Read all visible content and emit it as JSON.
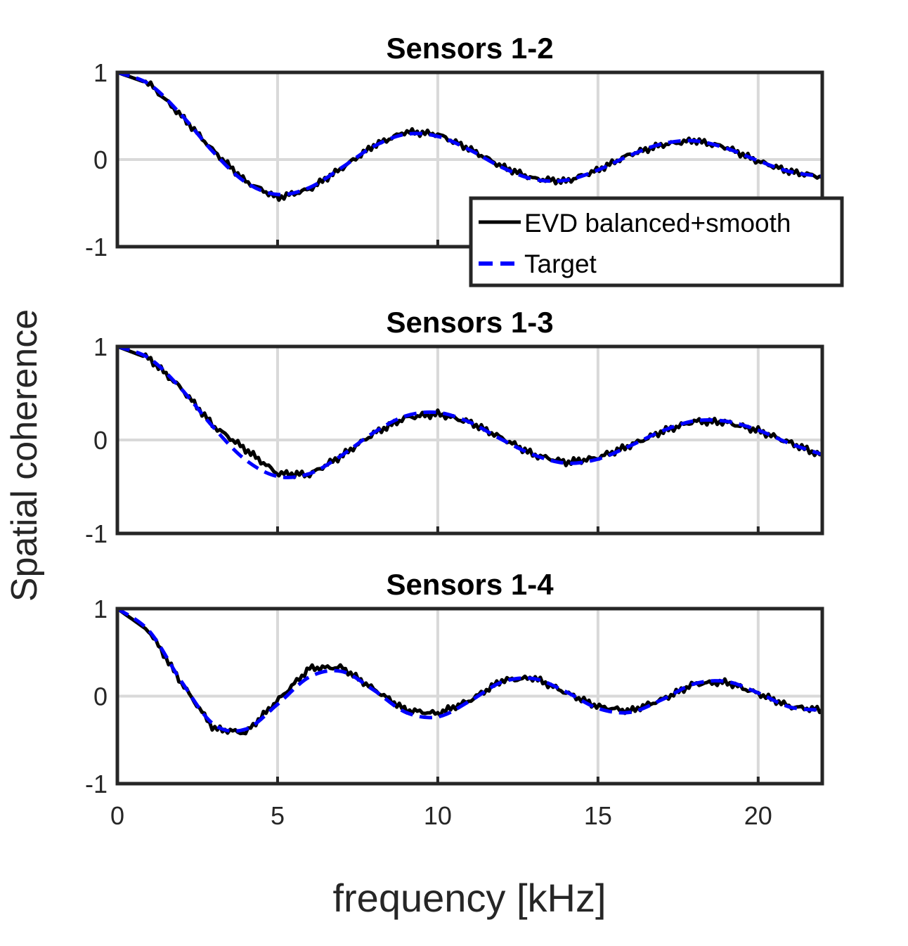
{
  "chart_data": {
    "type": "line",
    "ylabel": "Spatial coherence",
    "xlabel": "frequency [kHz]",
    "xlim": [
      0,
      22
    ],
    "ylim": [
      -1,
      1
    ],
    "xticks": [
      0,
      5,
      10,
      15,
      20
    ],
    "yticks": [
      -1,
      0,
      1
    ],
    "grid": true,
    "legend": {
      "placement": "bottom-right of first panel",
      "entries": [
        "EVD balanced+smooth",
        "Target"
      ]
    },
    "colors": {
      "measured": "#000000",
      "target": "#0000ff",
      "grid": "#d9d9d9",
      "axes": "#262626"
    },
    "x": [
      0,
      1,
      2,
      3,
      4,
      5,
      6,
      7,
      8,
      9,
      10,
      11,
      12,
      13,
      14,
      15,
      16,
      17,
      18,
      19,
      20,
      21,
      22
    ],
    "panels": [
      {
        "title": "Sensors 1-2",
        "series": [
          {
            "name": "EVD balanced+smooth",
            "values": [
              1,
              0.87,
              0.5,
              0.1,
              -0.25,
              -0.44,
              -0.34,
              -0.1,
              0.16,
              0.32,
              0.29,
              0.12,
              -0.08,
              -0.22,
              -0.25,
              -0.12,
              0.06,
              0.17,
              0.22,
              0.14,
              -0.02,
              -0.14,
              -0.2
            ]
          },
          {
            "name": "Target",
            "values": [
              1,
              0.864,
              0.512,
              0.083,
              -0.26,
              -0.401,
              -0.321,
              -0.093,
              0.151,
              0.29,
              0.266,
              0.11,
              -0.09,
              -0.227,
              -0.237,
              -0.12,
              0.048,
              0.18,
              0.215,
              0.13,
              -0.014,
              -0.14,
              -0.194
            ]
          }
        ]
      },
      {
        "title": "Sensors 1-3",
        "series": [
          {
            "name": "EVD balanced+smooth",
            "values": [
              1,
              0.87,
              0.55,
              0.15,
              -0.1,
              -0.36,
              -0.37,
              -0.17,
              0.07,
              0.24,
              0.28,
              0.19,
              0.02,
              -0.16,
              -0.24,
              -0.19,
              -0.06,
              0.09,
              0.2,
              0.19,
              0.1,
              -0.03,
              -0.17
            ]
          },
          {
            "name": "Target",
            "values": [
              1,
              0.873,
              0.544,
              0.134,
              -0.213,
              -0.39,
              -0.36,
              -0.165,
              0.079,
              0.257,
              0.294,
              0.189,
              0.004,
              -0.16,
              -0.248,
              -0.205,
              -0.063,
              0.096,
              0.203,
              0.2,
              0.105,
              -0.04,
              -0.155
            ]
          }
        ]
      },
      {
        "title": "Sensors 1-4",
        "series": [
          {
            "name": "EVD balanced+smooth",
            "values": [
              1,
              0.74,
              0.15,
              -0.37,
              -0.42,
              -0.05,
              0.32,
              0.33,
              0.08,
              -0.16,
              -0.2,
              -0.05,
              0.18,
              0.21,
              0.04,
              -0.12,
              -0.17,
              -0.04,
              0.14,
              0.16,
              0.03,
              -0.12,
              -0.16
            ]
          },
          {
            "name": "Target",
            "values": [
              1,
              0.742,
              0.167,
              -0.32,
              -0.378,
              -0.093,
              0.22,
              0.283,
              0.069,
              -0.185,
              -0.237,
              -0.057,
              0.16,
              0.2,
              0.05,
              -0.14,
              -0.185,
              -0.04,
              0.14,
              0.168,
              0.037,
              -0.126,
              -0.16
            ]
          }
        ]
      }
    ]
  }
}
